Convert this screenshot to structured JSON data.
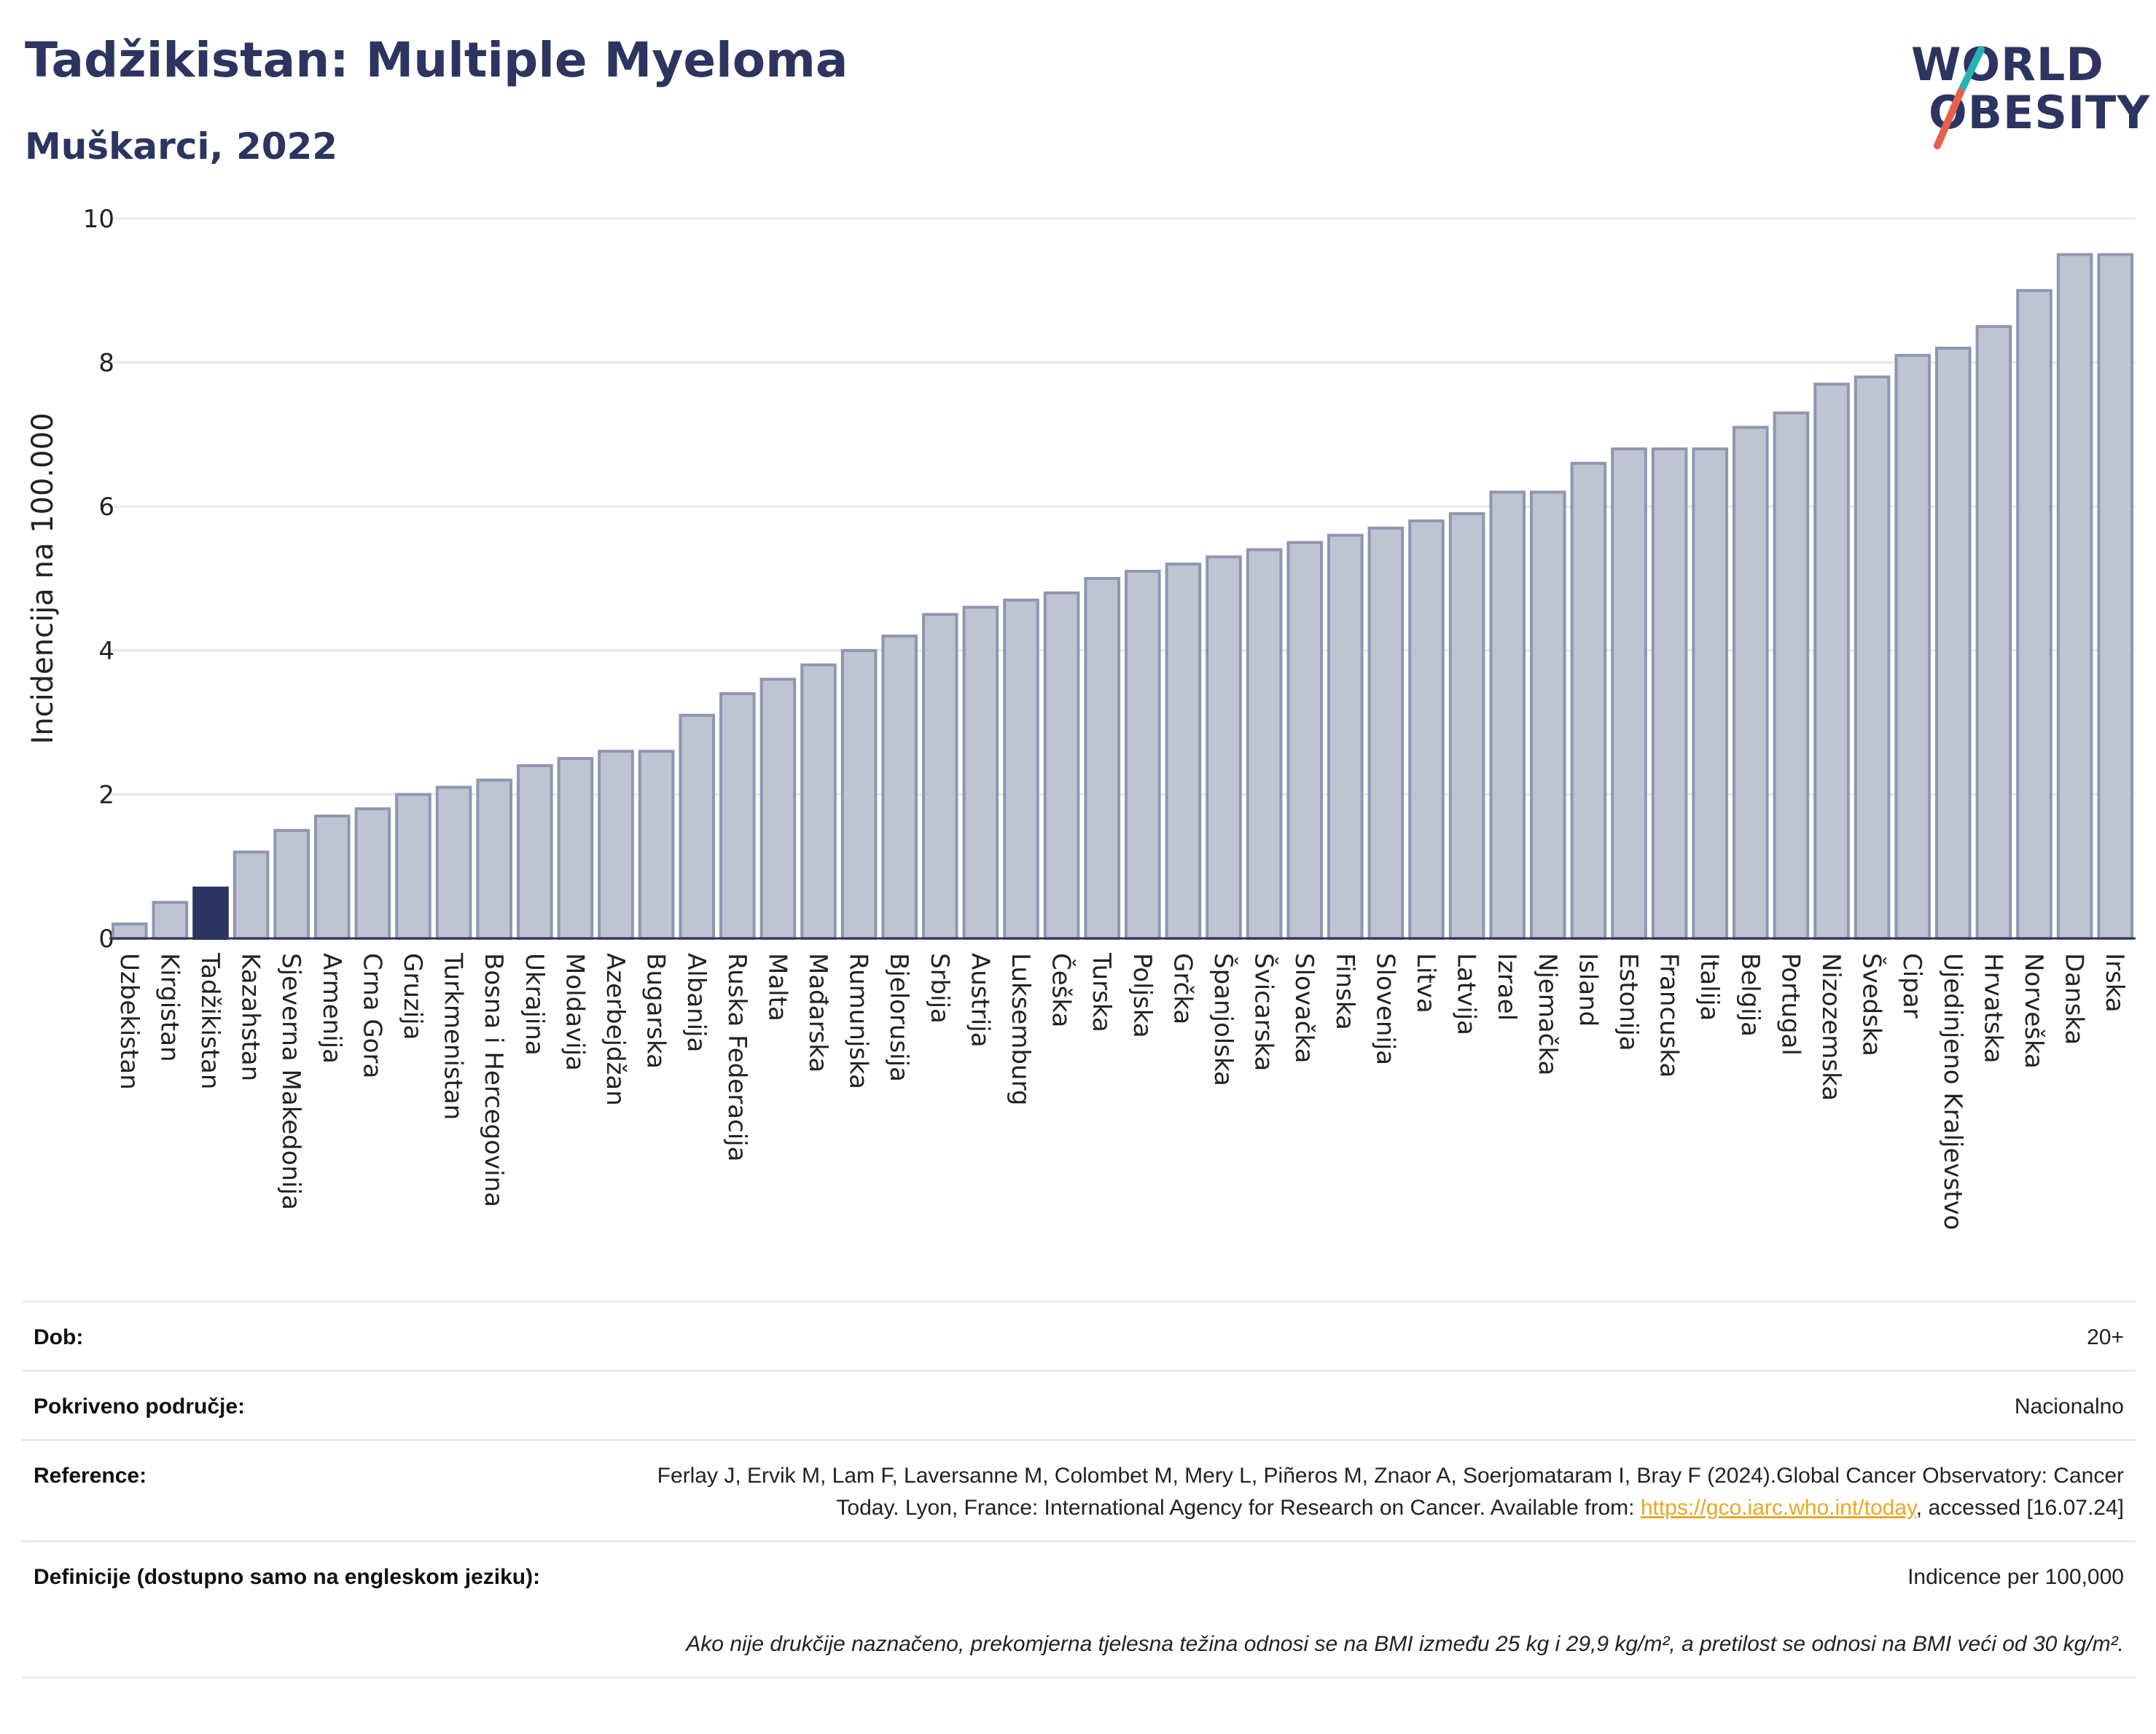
{
  "header": {
    "title": "Tadžikistan: Multiple Myeloma",
    "subtitle": "Muškarci, 2022"
  },
  "logo": {
    "line1": "WORLD",
    "line2": "OBESITY",
    "accent_teal": "#25b3b3",
    "accent_red": "#e8604c"
  },
  "colors": {
    "bar": "#c0c4d2",
    "bar_stroke": "#8f96b0",
    "highlight": "#2c3560",
    "grid": "#e6e8ee"
  },
  "chart_data": {
    "type": "bar",
    "ylabel": "Incidencija na 100.000",
    "ylim": [
      0,
      10
    ],
    "yticks": [
      0,
      2,
      4,
      6,
      8,
      10
    ],
    "grid": true,
    "highlight_category": "Tadžikistan",
    "categories": [
      "Uzbekistan",
      "Kirgistan",
      "Tadžikistan",
      "Kazahstan",
      "Sjeverna Makedonija",
      "Armenija",
      "Crna Gora",
      "Gruzija",
      "Turkmenistan",
      "Bosna i Hercegovina",
      "Ukrajina",
      "Moldavija",
      "Azerbejdžan",
      "Bugarska",
      "Albanija",
      "Ruska Federacija",
      "Malta",
      "Mađarska",
      "Rumunjska",
      "Bjelorusija",
      "Srbija",
      "Austrija",
      "Luksemburg",
      "Češka",
      "Turska",
      "Poljska",
      "Grčka",
      "Španjolska",
      "Švicarska",
      "Slovačka",
      "Finska",
      "Slovenija",
      "Litva",
      "Latvija",
      "Izrael",
      "Njemačka",
      "Island",
      "Estonija",
      "Francuska",
      "Italija",
      "Belgija",
      "Portugal",
      "Nizozemska",
      "Švedska",
      "Cipar",
      "Ujedinjeno Kraljevstvo",
      "Hrvatska",
      "Norveška",
      "Danska",
      "Irska"
    ],
    "values": [
      0.2,
      0.5,
      0.7,
      1.2,
      1.5,
      1.7,
      1.8,
      2.0,
      2.1,
      2.2,
      2.4,
      2.5,
      2.6,
      2.6,
      3.1,
      3.4,
      3.6,
      3.8,
      4.0,
      4.2,
      4.5,
      4.6,
      4.7,
      4.8,
      5.0,
      5.1,
      5.2,
      5.3,
      5.4,
      5.5,
      5.6,
      5.7,
      5.8,
      5.9,
      6.2,
      6.2,
      6.6,
      6.8,
      6.8,
      6.8,
      7.1,
      7.3,
      7.7,
      7.8,
      8.1,
      8.2,
      8.5,
      9.0,
      9.5,
      9.5
    ]
  },
  "meta": {
    "rows": [
      {
        "label": "Dob:",
        "value": "20+"
      },
      {
        "label": "Pokriveno područje:",
        "value": "Nacionalno"
      },
      {
        "label": "Reference:",
        "value_pre": "Ferlay J, Ervik M, Lam F, Laversanne M, Colombet M, Mery L, Piñeros M, Znaor A, Soerjomataram I, Bray F (2024).Global Cancer Observatory: Cancer Today. Lyon, France: International Agency for Research on Cancer. Available from: ",
        "link": "https://gco.iarc.who.int/today",
        "value_post": ", accessed [16.07.24]"
      },
      {
        "label": "Definicije (dostupno samo na engleskom jeziku):",
        "value": "Indicence per 100,000"
      }
    ],
    "note": "Ako nije drukčije naznačeno, prekomjerna tjelesna težina odnosi se na BMI između 25 kg i 29,9 kg/m², a pretilost se odnosi na BMI veći od 30 kg/m²."
  }
}
